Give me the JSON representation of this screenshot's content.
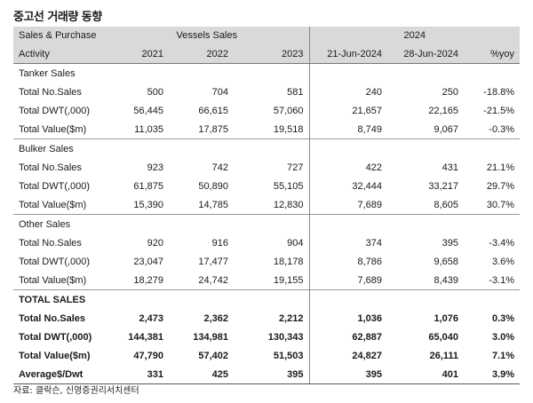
{
  "title": "중고선 거래량 동향",
  "header": {
    "row1": {
      "label": "Sales & Purchase",
      "group1": "Vessels Sales",
      "group2": "2024"
    },
    "row2": {
      "label": "Activity",
      "cols": [
        "2021",
        "2022",
        "2023",
        "21-Jun-2024",
        "28-Jun-2024",
        "%yoy"
      ]
    }
  },
  "sections": [
    {
      "name": "Tanker Sales",
      "rows": [
        {
          "label": "Total No.Sales",
          "values": [
            "500",
            "704",
            "581",
            "240",
            "250",
            "-18.8%"
          ]
        },
        {
          "label": "Total DWT(,000)",
          "values": [
            "56,445",
            "66,615",
            "57,060",
            "21,657",
            "22,165",
            "-21.5%"
          ]
        },
        {
          "label": "Total Value($m)",
          "values": [
            "11,035",
            "17,875",
            "19,518",
            "8,749",
            "9,067",
            "-0.3%"
          ]
        }
      ]
    },
    {
      "name": "Bulker Sales",
      "rows": [
        {
          "label": "Total No.Sales",
          "values": [
            "923",
            "742",
            "727",
            "422",
            "431",
            "21.1%"
          ]
        },
        {
          "label": "Total DWT(,000)",
          "values": [
            "61,875",
            "50,890",
            "55,105",
            "32,444",
            "33,217",
            "29.7%"
          ]
        },
        {
          "label": "Total Value($m)",
          "values": [
            "15,390",
            "14,785",
            "12,830",
            "7,689",
            "8,605",
            "30.7%"
          ]
        }
      ]
    },
    {
      "name": "Other Sales",
      "rows": [
        {
          "label": "Total No.Sales",
          "values": [
            "920",
            "916",
            "904",
            "374",
            "395",
            "-3.4%"
          ]
        },
        {
          "label": "Total DWT(,000)",
          "values": [
            "23,047",
            "17,477",
            "18,178",
            "8,786",
            "9,658",
            "3.6%"
          ]
        },
        {
          "label": "Total Value($m)",
          "values": [
            "18,279",
            "24,742",
            "19,155",
            "7,689",
            "8,439",
            "-3.1%"
          ]
        }
      ]
    },
    {
      "name": "TOTAL SALES",
      "bold": true,
      "rows": [
        {
          "label": "Total No.Sales",
          "values": [
            "2,473",
            "2,362",
            "2,212",
            "1,036",
            "1,076",
            "0.3%"
          ]
        },
        {
          "label": "Total DWT(,000)",
          "values": [
            "144,381",
            "134,981",
            "130,343",
            "62,887",
            "65,040",
            "3.0%"
          ]
        },
        {
          "label": "Total Value($m)",
          "values": [
            "47,790",
            "57,402",
            "51,503",
            "24,827",
            "26,111",
            "7.1%"
          ]
        },
        {
          "label": "Average$/Dwt",
          "values": [
            "331",
            "425",
            "395",
            "395",
            "401",
            "3.9%"
          ]
        }
      ]
    }
  ],
  "source": "자료: 클락슨, 신영증권리서치센터"
}
